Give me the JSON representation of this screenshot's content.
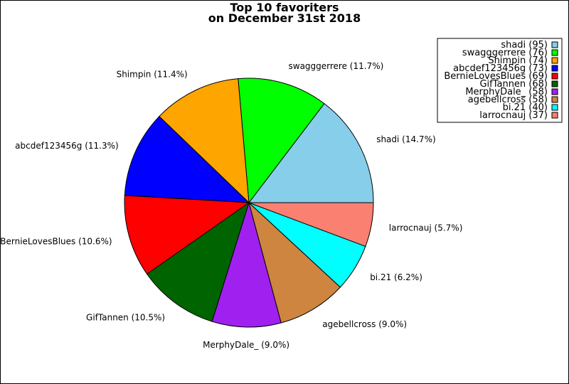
{
  "chart_data": {
    "type": "pie",
    "title": "Top 10 favoriters",
    "subtitle": "on December 31st 2018",
    "slices": [
      {
        "label": "shadi",
        "value": 95,
        "percent": "14.7%",
        "color": "#87ceeb"
      },
      {
        "label": "swagggerrere",
        "value": 76,
        "percent": "11.7%",
        "color": "#00ff00"
      },
      {
        "label": "Shimpin",
        "value": 74,
        "percent": "11.4%",
        "color": "#ffa500"
      },
      {
        "label": "abcdef123456g",
        "value": 73,
        "percent": "11.3%",
        "color": "#0000ff"
      },
      {
        "label": "BernieLovesBlues",
        "value": 69,
        "percent": "10.6%",
        "color": "#ff0000"
      },
      {
        "label": "GifTannen",
        "value": 68,
        "percent": "10.5%",
        "color": "#006400"
      },
      {
        "label": "MerphyDale_",
        "value": 58,
        "percent": "9.0%",
        "color": "#a020f0"
      },
      {
        "label": "agebellcross",
        "value": 58,
        "percent": "9.0%",
        "color": "#cd853f"
      },
      {
        "label": "bi.21",
        "value": 40,
        "percent": "6.2%",
        "color": "#00ffff"
      },
      {
        "label": "larrocnauj",
        "value": 37,
        "percent": "5.7%",
        "color": "#fa8072"
      }
    ],
    "legend_placement": "top-right",
    "start_angle_deg": 0,
    "direction": "counterclockwise"
  }
}
